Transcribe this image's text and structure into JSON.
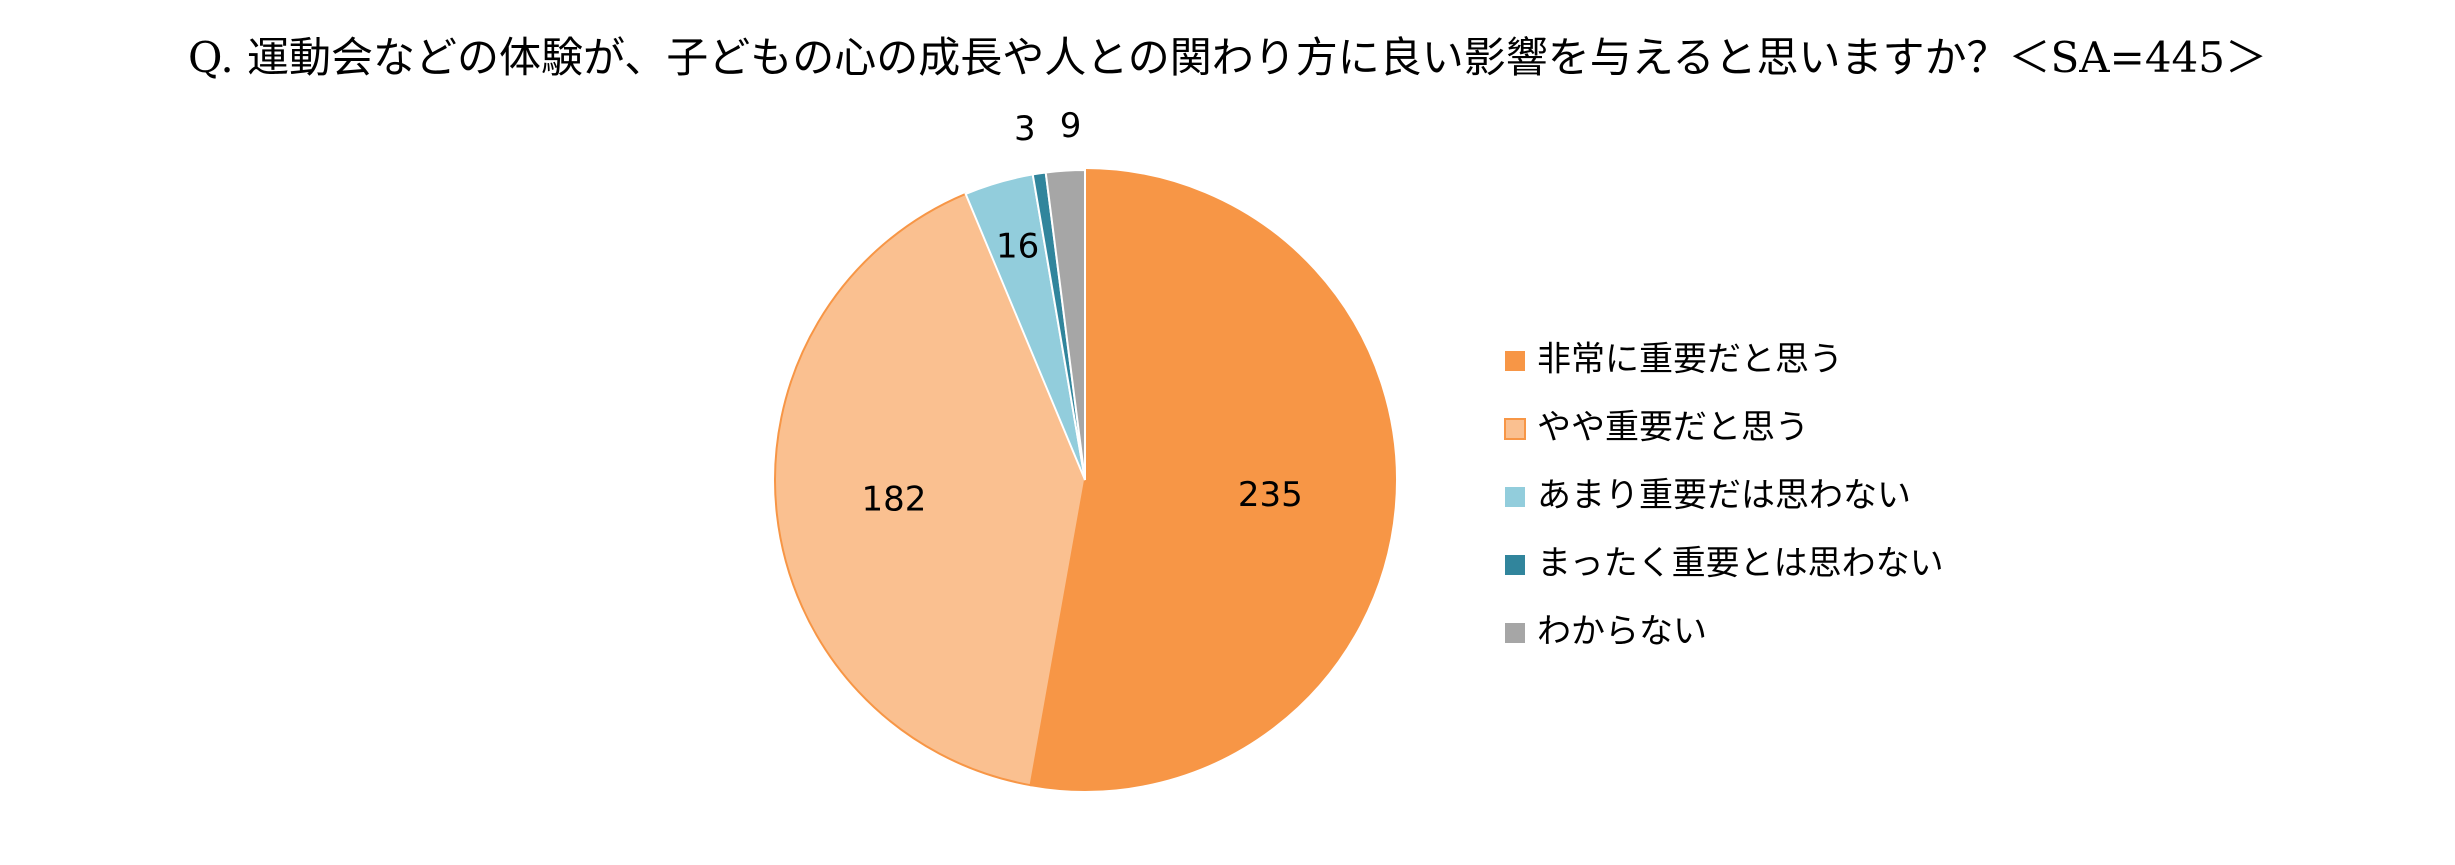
{
  "chart_data": {
    "type": "pie",
    "title": "Q. 運動会などの体験が、子どもの心の成長や人との関わり方に良い影響を与えると思いますか？＜SA=445＞",
    "categories": [
      "非常に重要だと思う",
      "やや重要だと思う",
      "あまり重要だは思わない",
      "まったく重要とは思わない",
      "わからない"
    ],
    "values": [
      235,
      182,
      16,
      3,
      9
    ],
    "data_labels": [
      "235",
      "182",
      "16",
      "3",
      "9"
    ],
    "colors": [
      "#F79646",
      "#FAC090",
      "#92CDDC",
      "#31859C",
      "#A6A6A6"
    ],
    "start_angle": "12 o'clock",
    "direction": "clockwise",
    "legend_position": "right"
  }
}
